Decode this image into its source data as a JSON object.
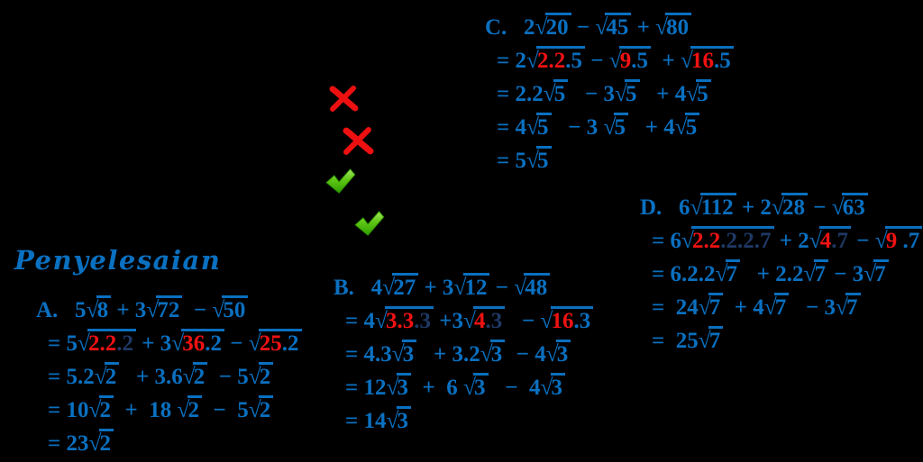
{
  "title": {
    "text": "Penyelesaian"
  },
  "colors": {
    "background": "#000000",
    "blue": "#0a70c0",
    "navy": "#1f3864",
    "red": "#f01212",
    "cross_red": "#ee1010",
    "check_green_light": "#8fdc3f",
    "check_green_dark": "#2f9e00"
  },
  "symbols": {
    "radical": "√"
  },
  "marks": [
    {
      "name": "cross-icon",
      "meaning": "incorrect"
    },
    {
      "name": "cross-icon",
      "meaning": "incorrect"
    },
    {
      "name": "check-icon",
      "meaning": "correct"
    },
    {
      "name": "check-icon",
      "meaning": "correct"
    }
  ],
  "sections": [
    {
      "id": "A",
      "label": "A.",
      "lines": [
        [
          {
            "t": "A.   5"
          },
          {
            "sqrt": [
              {
                "t": "8"
              }
            ]
          },
          {
            "t": " + 3"
          },
          {
            "sqrt": [
              {
                "t": "72"
              }
            ]
          },
          {
            "t": "  − "
          },
          {
            "sqrt": [
              {
                "t": "50"
              }
            ]
          }
        ],
        [
          {
            "t": "= 5"
          },
          {
            "sqrt": [
              {
                "t": "2.2",
                "c": "red"
              },
              {
                "t": ".2",
                "c": "navy"
              }
            ]
          },
          {
            "t": " + 3"
          },
          {
            "sqrt": [
              {
                "t": "36",
                "c": "red"
              },
              {
                "t": ".2"
              }
            ]
          },
          {
            "t": " − "
          },
          {
            "sqrt": [
              {
                "t": "25",
                "c": "red"
              },
              {
                "t": ".2"
              }
            ]
          }
        ],
        [
          {
            "t": "= 5.2"
          },
          {
            "sqrt": [
              {
                "t": "2"
              }
            ]
          },
          {
            "t": "   + 3.6"
          },
          {
            "sqrt": [
              {
                "t": "2"
              }
            ]
          },
          {
            "t": "  − 5"
          },
          {
            "sqrt": [
              {
                "t": "2"
              }
            ]
          }
        ],
        [
          {
            "t": "= 10"
          },
          {
            "sqrt": [
              {
                "t": "2"
              }
            ]
          },
          {
            "t": "  +  18 "
          },
          {
            "sqrt": [
              {
                "t": "2"
              }
            ]
          },
          {
            "t": "  −  5"
          },
          {
            "sqrt": [
              {
                "t": "2"
              }
            ]
          }
        ],
        [
          {
            "t": "= 23"
          },
          {
            "sqrt": [
              {
                "t": "2"
              }
            ]
          }
        ]
      ]
    },
    {
      "id": "B",
      "label": "B.",
      "lines": [
        [
          {
            "t": "B.   4"
          },
          {
            "sqrt": [
              {
                "t": "27"
              }
            ]
          },
          {
            "t": " + 3"
          },
          {
            "sqrt": [
              {
                "t": "12"
              }
            ]
          },
          {
            "t": " − "
          },
          {
            "sqrt": [
              {
                "t": "48"
              }
            ]
          }
        ],
        [
          {
            "t": "= 4"
          },
          {
            "sqrt": [
              {
                "t": "3.3",
                "c": "red"
              },
              {
                "t": ".3",
                "c": "navy"
              }
            ]
          },
          {
            "t": " +3"
          },
          {
            "sqrt": [
              {
                "t": "4",
                "c": "red"
              },
              {
                "t": ".3",
                "c": "navy"
              }
            ]
          },
          {
            "t": "   − "
          },
          {
            "sqrt": [
              {
                "t": "16",
                "c": "red"
              },
              {
                "t": ".3"
              }
            ]
          }
        ],
        [
          {
            "t": "= 4.3"
          },
          {
            "sqrt": [
              {
                "t": "3"
              }
            ]
          },
          {
            "t": "   + 3.2"
          },
          {
            "sqrt": [
              {
                "t": "3"
              }
            ]
          },
          {
            "t": "  − 4"
          },
          {
            "sqrt": [
              {
                "t": "3"
              }
            ]
          }
        ],
        [
          {
            "t": "= 12"
          },
          {
            "sqrt": [
              {
                "t": "3"
              }
            ]
          },
          {
            "t": "  +  6 "
          },
          {
            "sqrt": [
              {
                "t": "3"
              }
            ]
          },
          {
            "t": "   −  4"
          },
          {
            "sqrt": [
              {
                "t": "3"
              }
            ]
          }
        ],
        [
          {
            "t": "= 14"
          },
          {
            "sqrt": [
              {
                "t": "3"
              }
            ]
          }
        ]
      ]
    },
    {
      "id": "C",
      "label": "C.",
      "lines": [
        [
          {
            "t": "C.   2"
          },
          {
            "sqrt": [
              {
                "t": "20"
              }
            ]
          },
          {
            "t": " − "
          },
          {
            "sqrt": [
              {
                "t": "45"
              }
            ]
          },
          {
            "t": " + "
          },
          {
            "sqrt": [
              {
                "t": "80"
              }
            ]
          }
        ],
        [
          {
            "t": "= 2"
          },
          {
            "sqrt": [
              {
                "t": "2.2",
                "c": "red"
              },
              {
                "t": ".5"
              }
            ]
          },
          {
            "t": " − "
          },
          {
            "sqrt": [
              {
                "t": "9",
                "c": "red"
              },
              {
                "t": ".5"
              }
            ]
          },
          {
            "t": "  + "
          },
          {
            "sqrt": [
              {
                "t": "16",
                "c": "red"
              },
              {
                "t": ".5"
              }
            ]
          }
        ],
        [
          {
            "t": "= 2.2"
          },
          {
            "sqrt": [
              {
                "t": "5"
              }
            ]
          },
          {
            "t": "   − 3"
          },
          {
            "sqrt": [
              {
                "t": "5"
              }
            ]
          },
          {
            "t": "   + 4"
          },
          {
            "sqrt": [
              {
                "t": "5"
              }
            ]
          }
        ],
        [
          {
            "t": "= 4"
          },
          {
            "sqrt": [
              {
                "t": "5"
              }
            ]
          },
          {
            "t": "   − 3 "
          },
          {
            "sqrt": [
              {
                "t": "5"
              }
            ]
          },
          {
            "t": "   + 4"
          },
          {
            "sqrt": [
              {
                "t": "5"
              }
            ]
          }
        ],
        [
          {
            "t": "= 5"
          },
          {
            "sqrt": [
              {
                "t": "5"
              }
            ]
          }
        ]
      ]
    },
    {
      "id": "D",
      "label": "D.",
      "lines": [
        [
          {
            "t": "D.   6"
          },
          {
            "sqrt": [
              {
                "t": "112"
              }
            ]
          },
          {
            "t": " + 2"
          },
          {
            "sqrt": [
              {
                "t": "28"
              }
            ]
          },
          {
            "t": " − "
          },
          {
            "sqrt": [
              {
                "t": "63"
              }
            ]
          }
        ],
        [
          {
            "t": "= 6"
          },
          {
            "sqrt": [
              {
                "t": "2.2",
                "c": "red"
              },
              {
                "t": ".2.2.7",
                "c": "navy"
              }
            ]
          },
          {
            "t": " + 2"
          },
          {
            "sqrt": [
              {
                "t": "4",
                "c": "red"
              },
              {
                "t": ".7",
                "c": "navy"
              }
            ]
          },
          {
            "t": " − "
          },
          {
            "sqrt": [
              {
                "t": "9",
                "c": "red"
              },
              {
                "t": " .7"
              }
            ]
          }
        ],
        [
          {
            "t": "= 6.2.2"
          },
          {
            "sqrt": [
              {
                "t": "7"
              }
            ]
          },
          {
            "t": "   + 2.2"
          },
          {
            "sqrt": [
              {
                "t": "7"
              }
            ]
          },
          {
            "t": " − 3"
          },
          {
            "sqrt": [
              {
                "t": "7"
              }
            ]
          }
        ],
        [
          {
            "t": "=  24"
          },
          {
            "sqrt": [
              {
                "t": "7"
              }
            ]
          },
          {
            "t": "  + 4"
          },
          {
            "sqrt": [
              {
                "t": "7"
              }
            ]
          },
          {
            "t": "   − 3"
          },
          {
            "sqrt": [
              {
                "t": "7"
              }
            ]
          }
        ],
        [
          {
            "t": "=  25"
          },
          {
            "sqrt": [
              {
                "t": "7"
              }
            ]
          }
        ]
      ]
    }
  ]
}
